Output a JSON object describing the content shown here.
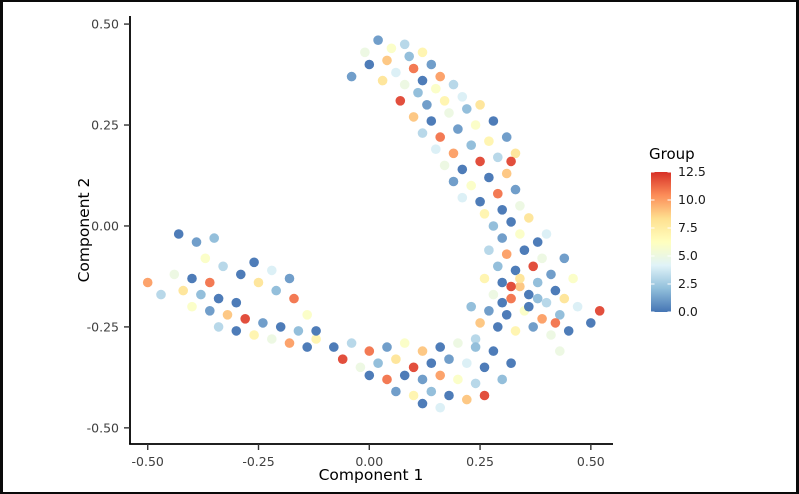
{
  "figure": {
    "background": "#ffffff",
    "frame_color": "#0a0a0a",
    "axis_color": "#000000",
    "tick_color": "#333333"
  },
  "chart_data": {
    "type": "scatter",
    "title": "",
    "xlabel": "Component 1",
    "ylabel": "Component 2",
    "xlim": [
      -0.54,
      0.55
    ],
    "ylim": [
      -0.54,
      0.52
    ],
    "x_ticks": [
      -0.5,
      -0.25,
      0.0,
      0.25,
      0.5
    ],
    "x_tick_labels": [
      "-0.50",
      "-0.25",
      "0.00",
      "0.25",
      "0.50"
    ],
    "y_ticks": [
      0.5,
      0.25,
      0.0,
      -0.25,
      -0.5
    ],
    "y_tick_labels": [
      "0.50",
      "0.25",
      "0.00",
      "-0.25",
      "-0.50"
    ],
    "grid": false,
    "legend": {
      "title": "Group",
      "position": "right",
      "style": "colorbar",
      "range": [
        0,
        12.5
      ],
      "ticks": [
        "12.5",
        "10.0",
        "7.5",
        "5.0",
        "2.5",
        "0.0"
      ]
    },
    "colormap": {
      "name": "RdYlBu_r",
      "stops": [
        "#4575b4",
        "#91bfdb",
        "#e0f3f8",
        "#ffffbf",
        "#fee090",
        "#fc8d59",
        "#d73027"
      ]
    },
    "point_radius": 4.8,
    "points": [
      [
        0.02,
        0.46,
        1
      ],
      [
        0.05,
        0.44,
        6
      ],
      [
        -0.01,
        0.43,
        5
      ],
      [
        0.08,
        0.45,
        3
      ],
      [
        0.0,
        0.4,
        0
      ],
      [
        0.04,
        0.41,
        9
      ],
      [
        0.09,
        0.42,
        2
      ],
      [
        0.12,
        0.43,
        7
      ],
      [
        0.06,
        0.38,
        4
      ],
      [
        0.1,
        0.39,
        11
      ],
      [
        0.14,
        0.4,
        1
      ],
      [
        0.03,
        0.36,
        8
      ],
      [
        -0.04,
        0.37,
        1
      ],
      [
        0.08,
        0.35,
        5
      ],
      [
        0.12,
        0.36,
        0
      ],
      [
        0.16,
        0.37,
        10
      ],
      [
        0.11,
        0.33,
        2
      ],
      [
        0.15,
        0.34,
        6
      ],
      [
        0.19,
        0.35,
        3
      ],
      [
        0.07,
        0.31,
        12
      ],
      [
        0.13,
        0.3,
        1
      ],
      [
        0.17,
        0.31,
        7
      ],
      [
        0.21,
        0.32,
        4
      ],
      [
        0.1,
        0.27,
        9
      ],
      [
        0.14,
        0.26,
        0
      ],
      [
        0.18,
        0.28,
        5
      ],
      [
        0.22,
        0.29,
        2
      ],
      [
        0.25,
        0.3,
        8
      ],
      [
        0.12,
        0.23,
        3
      ],
      [
        0.16,
        0.22,
        11
      ],
      [
        0.2,
        0.24,
        1
      ],
      [
        0.24,
        0.25,
        6
      ],
      [
        0.28,
        0.26,
        0
      ],
      [
        0.15,
        0.19,
        4
      ],
      [
        0.19,
        0.18,
        10
      ],
      [
        0.23,
        0.2,
        2
      ],
      [
        0.27,
        0.21,
        7
      ],
      [
        0.31,
        0.22,
        1
      ],
      [
        0.17,
        0.15,
        5
      ],
      [
        0.21,
        0.14,
        0
      ],
      [
        0.25,
        0.16,
        12
      ],
      [
        0.29,
        0.17,
        3
      ],
      [
        0.33,
        0.18,
        8
      ],
      [
        0.19,
        0.11,
        1
      ],
      [
        0.23,
        0.1,
        6
      ],
      [
        0.27,
        0.12,
        0
      ],
      [
        0.31,
        0.13,
        9
      ],
      [
        0.32,
        0.16,
        12
      ],
      [
        0.21,
        0.07,
        4
      ],
      [
        0.25,
        0.06,
        0
      ],
      [
        0.29,
        0.08,
        11
      ],
      [
        0.33,
        0.09,
        1
      ],
      [
        0.26,
        0.03,
        7
      ],
      [
        0.3,
        0.04,
        0
      ],
      [
        0.34,
        0.05,
        5
      ],
      [
        0.28,
        0.0,
        2
      ],
      [
        0.32,
        0.01,
        0
      ],
      [
        0.36,
        0.02,
        8
      ],
      [
        0.3,
        -0.03,
        1
      ],
      [
        0.34,
        -0.02,
        6
      ],
      [
        0.38,
        -0.04,
        0
      ],
      [
        0.27,
        -0.06,
        3
      ],
      [
        0.31,
        -0.07,
        10
      ],
      [
        0.35,
        -0.06,
        0
      ],
      [
        0.39,
        -0.08,
        5
      ],
      [
        0.29,
        -0.1,
        2
      ],
      [
        0.33,
        -0.11,
        0
      ],
      [
        0.37,
        -0.1,
        12
      ],
      [
        0.41,
        -0.12,
        1
      ],
      [
        0.26,
        -0.13,
        7
      ],
      [
        0.3,
        -0.14,
        0
      ],
      [
        0.34,
        -0.15,
        9
      ],
      [
        0.38,
        -0.14,
        2
      ],
      [
        0.42,
        -0.16,
        0
      ],
      [
        0.28,
        -0.17,
        5
      ],
      [
        0.32,
        -0.18,
        11
      ],
      [
        0.36,
        -0.17,
        0
      ],
      [
        0.4,
        -0.19,
        3
      ],
      [
        0.44,
        -0.18,
        8
      ],
      [
        0.27,
        -0.21,
        1
      ],
      [
        0.31,
        -0.22,
        0
      ],
      [
        0.35,
        -0.21,
        6
      ],
      [
        0.39,
        -0.23,
        10
      ],
      [
        0.43,
        -0.22,
        2
      ],
      [
        0.47,
        -0.2,
        4
      ],
      [
        0.52,
        -0.21,
        12
      ],
      [
        0.5,
        -0.24,
        0
      ],
      [
        0.29,
        -0.25,
        0
      ],
      [
        0.33,
        -0.26,
        7
      ],
      [
        0.37,
        -0.25,
        1
      ],
      [
        0.41,
        -0.27,
        5
      ],
      [
        0.45,
        -0.26,
        0
      ],
      [
        0.25,
        -0.24,
        9
      ],
      [
        0.23,
        -0.2,
        2
      ],
      [
        0.24,
        -0.28,
        3
      ],
      [
        0.46,
        -0.13,
        6
      ],
      [
        0.44,
        -0.08,
        1
      ],
      [
        0.4,
        -0.02,
        4
      ],
      [
        0.36,
        -0.2,
        0
      ],
      [
        0.34,
        -0.13,
        8
      ],
      [
        0.32,
        -0.15,
        12
      ],
      [
        0.3,
        -0.19,
        0
      ],
      [
        0.38,
        -0.18,
        2
      ],
      [
        0.42,
        -0.24,
        11
      ],
      [
        0.2,
        -0.29,
        5
      ],
      [
        0.16,
        -0.3,
        0
      ],
      [
        0.12,
        -0.31,
        9
      ],
      [
        0.24,
        -0.3,
        2
      ],
      [
        0.28,
        -0.31,
        0
      ],
      [
        0.08,
        -0.29,
        6
      ],
      [
        0.04,
        -0.3,
        1
      ],
      [
        0.0,
        -0.31,
        11
      ],
      [
        -0.04,
        -0.29,
        3
      ],
      [
        -0.08,
        -0.3,
        0
      ],
      [
        -0.12,
        -0.28,
        7
      ],
      [
        0.18,
        -0.33,
        1
      ],
      [
        0.14,
        -0.34,
        0
      ],
      [
        0.1,
        -0.35,
        12
      ],
      [
        0.22,
        -0.34,
        4
      ],
      [
        0.26,
        -0.35,
        0
      ],
      [
        0.06,
        -0.33,
        8
      ],
      [
        0.02,
        -0.34,
        2
      ],
      [
        -0.02,
        -0.35,
        5
      ],
      [
        -0.06,
        -0.33,
        12
      ],
      [
        0.16,
        -0.37,
        10
      ],
      [
        0.12,
        -0.38,
        1
      ],
      [
        0.08,
        -0.37,
        0
      ],
      [
        0.2,
        -0.38,
        6
      ],
      [
        0.24,
        -0.39,
        3
      ],
      [
        0.04,
        -0.38,
        11
      ],
      [
        0.0,
        -0.37,
        0
      ],
      [
        0.14,
        -0.41,
        2
      ],
      [
        0.1,
        -0.42,
        7
      ],
      [
        0.18,
        -0.42,
        0
      ],
      [
        0.22,
        -0.43,
        9
      ],
      [
        0.06,
        -0.41,
        1
      ],
      [
        0.16,
        -0.45,
        4
      ],
      [
        0.12,
        -0.44,
        0
      ],
      [
        0.26,
        -0.42,
        12
      ],
      [
        0.3,
        -0.38,
        2
      ],
      [
        0.32,
        -0.34,
        0
      ],
      [
        0.43,
        -0.31,
        5
      ],
      [
        -0.5,
        -0.14,
        10
      ],
      [
        -0.44,
        -0.12,
        5
      ],
      [
        -0.4,
        -0.13,
        0
      ],
      [
        -0.42,
        -0.16,
        8
      ],
      [
        -0.38,
        -0.17,
        2
      ],
      [
        -0.36,
        -0.14,
        11
      ],
      [
        -0.34,
        -0.18,
        0
      ],
      [
        -0.4,
        -0.2,
        6
      ],
      [
        -0.36,
        -0.21,
        1
      ],
      [
        -0.32,
        -0.22,
        9
      ],
      [
        -0.3,
        -0.19,
        0
      ],
      [
        -0.28,
        -0.23,
        12
      ],
      [
        -0.34,
        -0.25,
        3
      ],
      [
        -0.3,
        -0.26,
        0
      ],
      [
        -0.26,
        -0.27,
        7
      ],
      [
        -0.24,
        -0.24,
        1
      ],
      [
        -0.22,
        -0.28,
        5
      ],
      [
        -0.2,
        -0.25,
        0
      ],
      [
        -0.18,
        -0.29,
        10
      ],
      [
        -0.16,
        -0.26,
        2
      ],
      [
        -0.14,
        -0.3,
        0
      ],
      [
        -0.43,
        -0.02,
        0
      ],
      [
        -0.39,
        -0.04,
        1
      ],
      [
        -0.37,
        -0.08,
        6
      ],
      [
        -0.33,
        -0.1,
        3
      ],
      [
        -0.29,
        -0.12,
        0
      ],
      [
        -0.25,
        -0.14,
        8
      ],
      [
        -0.21,
        -0.16,
        2
      ],
      [
        -0.17,
        -0.18,
        11
      ],
      [
        -0.26,
        -0.09,
        0
      ],
      [
        -0.22,
        -0.11,
        4
      ],
      [
        -0.18,
        -0.13,
        1
      ],
      [
        -0.14,
        -0.22,
        6
      ],
      [
        -0.12,
        -0.26,
        0
      ],
      [
        -0.35,
        -0.03,
        2
      ],
      [
        -0.47,
        -0.17,
        3
      ]
    ]
  }
}
